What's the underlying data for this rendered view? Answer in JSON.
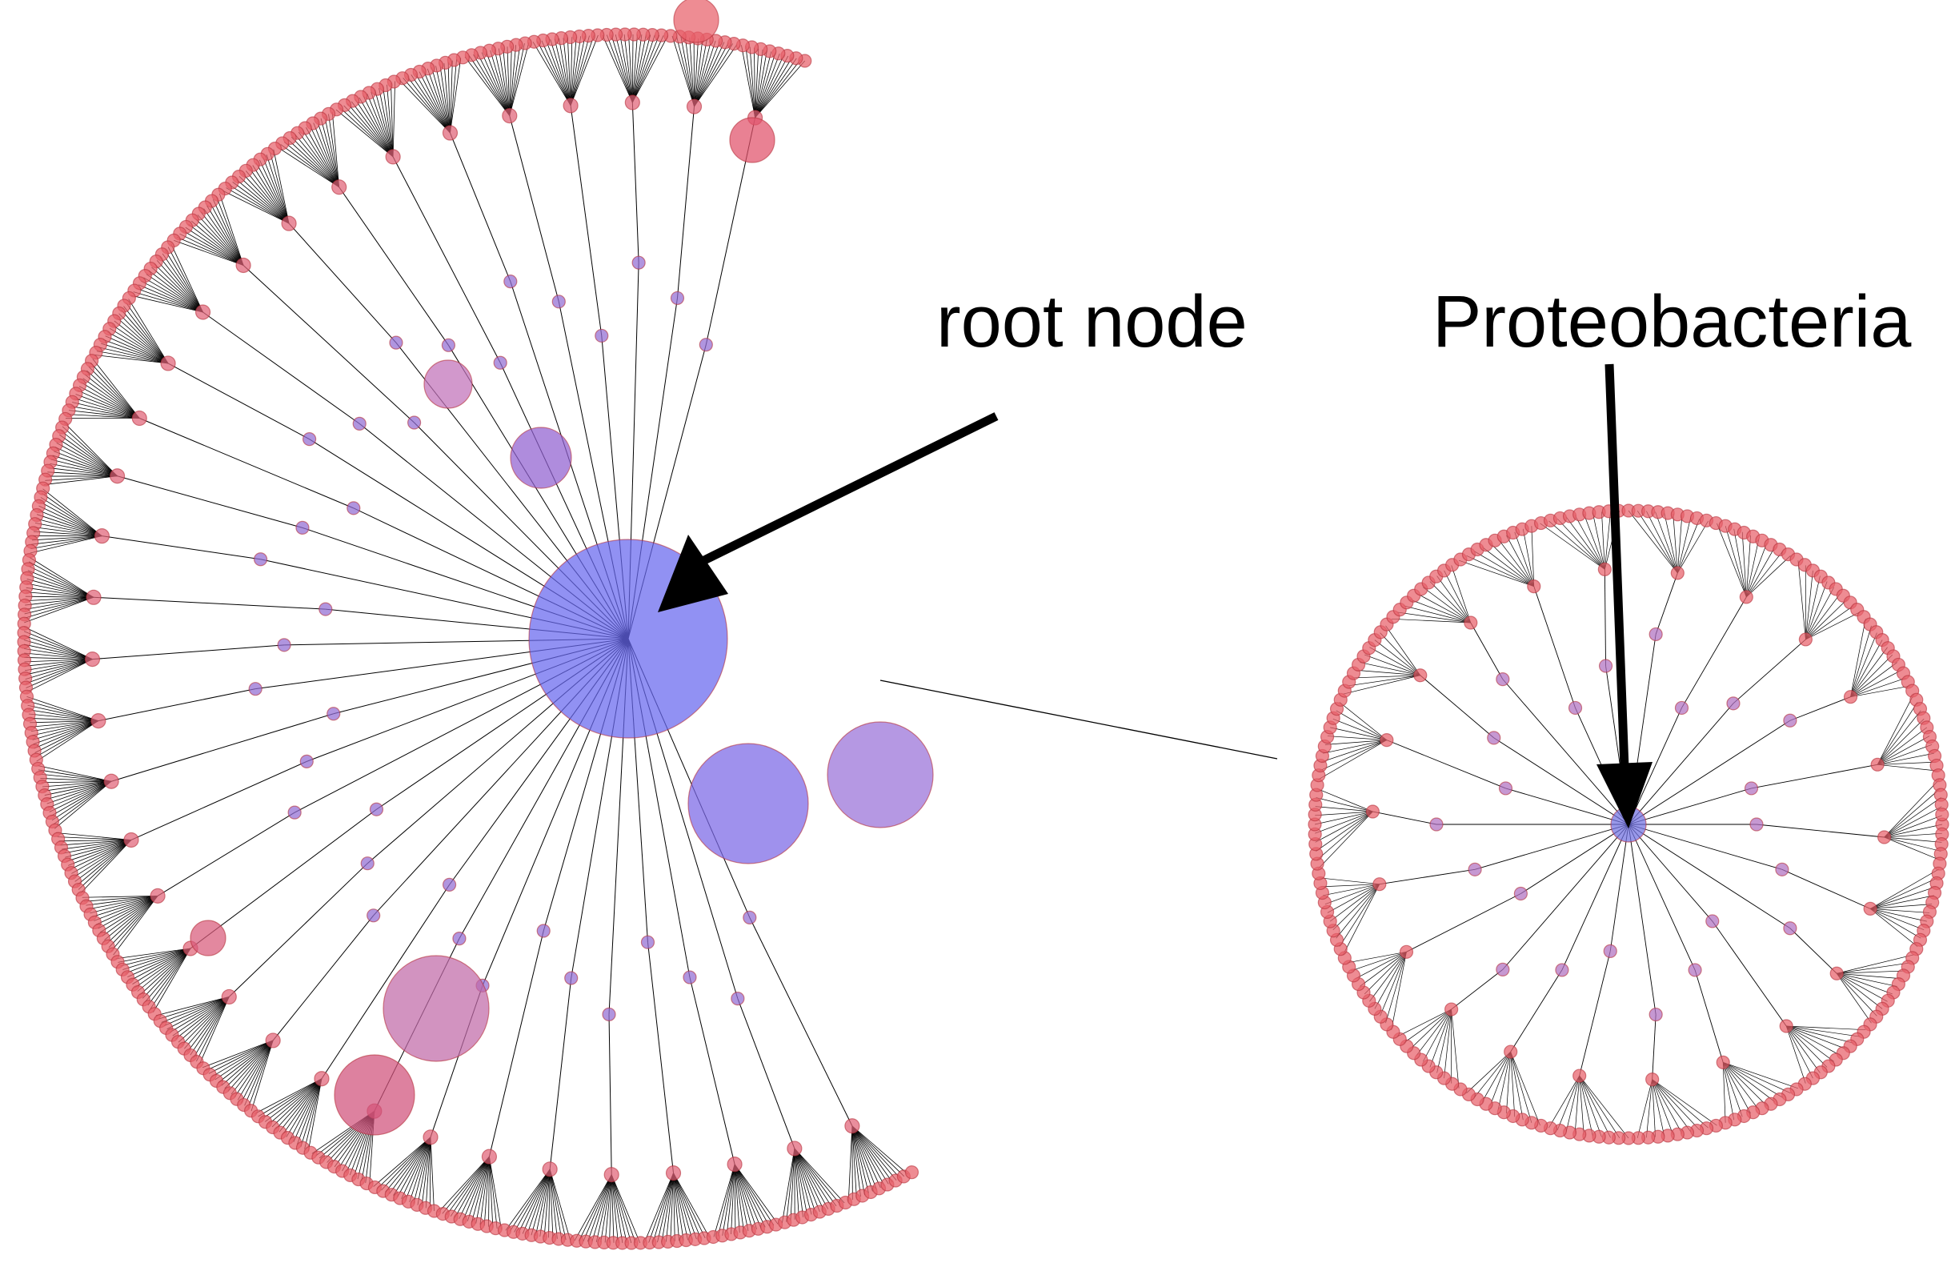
{
  "labels": {
    "root": "root node",
    "proteobacteria": "Proteobacteria"
  },
  "colors": {
    "leaf": "#e8606a",
    "leaf_stroke": "#b5303a",
    "inner_mid": "#b070c0",
    "root": "#6666ee",
    "proteo": "#7070e0",
    "edge": "#000000",
    "arrow": "#000000"
  },
  "icons": {
    "arrow": "arrow-icon"
  }
}
